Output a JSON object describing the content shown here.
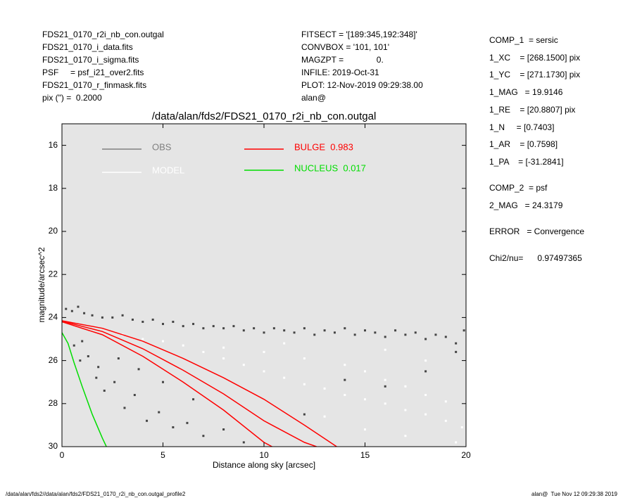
{
  "header": {
    "left": [
      "FDS21_0170_r2i_nb_con.outgal",
      "FDS21_0170_i_data.fits",
      "FDS21_0170_i_sigma.fits",
      "PSF     = psf_i21_over2.fits",
      "FDS21_0170_r_finmask.fits",
      "pix (\") =  0.2000"
    ],
    "middle": [
      "FITSECT = '[189:345,192:348]'",
      "CONVBOX = '101, 101'",
      "MAGZPT =              0.",
      "INFILE: 2019-Oct-31",
      "PLOT: 12-Nov-2019 09:29:38.00",
      "alan@"
    ],
    "right": [
      "COMP_1  = sersic",
      "1_XC    = [268.1500] pix",
      "1_YC    = [271.1730] pix",
      "1_MAG   = 19.9146",
      "1_RE    = [20.8807] pix",
      "1_N     = [0.7403]",
      "1_AR    = [0.7598]",
      "1_PA    = [-31.2841]",
      "COMP_2  = psf",
      "2_MAG   = 24.3179",
      "ERROR   = Convergence",
      "Chi2/nu=      0.97497365"
    ]
  },
  "footer": {
    "left": "/data/alan/fds2//data/alan/fds2/FDS21_0170_r2i_nb_con.outgal_profile2",
    "right": "alan@  Tue Nov 12 09:29:38 2019"
  },
  "chart_data": {
    "type": "scatter",
    "title": "/data/alan/fds2/FDS21_0170_r2i_nb_con.outgal",
    "xlabel": "Distance along sky [arcsec]",
    "ylabel": "magnitude/arcsec^2",
    "xlim": [
      0,
      20
    ],
    "ylim": [
      30,
      15
    ],
    "xticks": [
      0,
      5,
      10,
      15,
      20
    ],
    "yticks": [
      16,
      18,
      20,
      22,
      24,
      26,
      28,
      30
    ],
    "background": "#e5e5e5",
    "series": [
      {
        "name": "OBS",
        "color": "#444444",
        "legend_color": "#808080",
        "x": [
          0.2,
          0.5,
          0.8,
          1.1,
          1.5,
          2.0,
          2.5,
          3.0,
          3.5,
          4.0,
          4.5,
          5.0,
          5.5,
          6.0,
          6.5,
          7.0,
          7.5,
          8.0,
          8.5,
          9.0,
          9.5,
          10.0,
          10.5,
          11.0,
          11.5,
          12.0,
          12.5,
          13.0,
          13.5,
          14.0,
          14.5,
          15.0,
          15.5,
          16.0,
          16.5,
          17.0,
          17.5,
          18.0,
          18.5,
          19.0,
          19.5,
          19.9,
          0.6,
          0.9,
          1.3,
          1.7,
          2.1,
          2.6,
          3.1,
          3.6,
          4.2,
          4.8,
          5.5,
          6.2,
          7.0,
          8.0,
          9.0,
          1.0,
          1.8,
          2.8,
          3.8,
          5.0,
          6.5,
          12.0,
          14.0,
          16.0,
          18.0,
          19.5
        ],
        "values": [
          23.6,
          23.7,
          23.5,
          23.8,
          23.9,
          24.0,
          24.0,
          23.9,
          24.1,
          24.2,
          24.1,
          24.3,
          24.2,
          24.4,
          24.3,
          24.5,
          24.4,
          24.5,
          24.4,
          24.6,
          24.5,
          24.7,
          24.5,
          24.6,
          24.7,
          24.5,
          24.8,
          24.6,
          24.7,
          24.5,
          24.8,
          24.6,
          24.7,
          24.9,
          24.6,
          24.8,
          24.7,
          25.0,
          24.8,
          24.9,
          25.2,
          24.6,
          25.3,
          26.0,
          25.8,
          26.8,
          27.4,
          27.0,
          28.2,
          27.6,
          28.8,
          28.4,
          29.1,
          28.9,
          29.5,
          29.2,
          29.8,
          25.1,
          26.3,
          25.9,
          26.4,
          27.0,
          27.8,
          28.5,
          26.9,
          27.2,
          26.5,
          25.6
        ]
      },
      {
        "name": "MODEL",
        "color": "#ffffff",
        "legend_color": "#ffffff",
        "x": [
          3,
          4,
          5,
          6,
          7,
          8,
          9,
          10,
          11,
          12,
          13,
          14,
          15,
          16,
          17,
          18,
          19,
          19.8,
          8,
          10,
          12,
          14,
          15,
          16,
          17,
          18,
          19,
          13,
          15,
          17,
          19.5,
          11,
          16,
          18
        ],
        "values": [
          24.8,
          25.0,
          25.1,
          25.3,
          25.6,
          25.9,
          26.2,
          26.5,
          26.8,
          27.1,
          27.3,
          27.6,
          27.8,
          28.0,
          28.3,
          28.5,
          28.8,
          29.1,
          25.4,
          25.6,
          25.9,
          26.2,
          26.5,
          26.9,
          27.2,
          27.6,
          27.9,
          28.6,
          29.2,
          29.5,
          29.8,
          25.2,
          25.5,
          26.0
        ]
      },
      {
        "name": "BULGE  0.983",
        "color": "#ff0000",
        "lines": [
          {
            "x": [
              0,
              2,
              4,
              6,
              8,
              10,
              12,
              13.6
            ],
            "values": [
              24.15,
              24.5,
              25.1,
              25.9,
              26.8,
              27.8,
              29.0,
              30
            ]
          },
          {
            "x": [
              0,
              2,
              4,
              6,
              8,
              10,
              12,
              12.6
            ],
            "values": [
              24.17,
              24.65,
              25.45,
              26.45,
              27.55,
              28.8,
              29.8,
              30
            ]
          },
          {
            "x": [
              0,
              2,
              4,
              6,
              8,
              10,
              10.4
            ],
            "values": [
              24.2,
              24.8,
              25.8,
              27.0,
              28.3,
              29.8,
              30
            ]
          }
        ]
      },
      {
        "name": "NUCLEUS  0.017",
        "color": "#00dd00",
        "x": [
          0,
          0.3,
          0.6,
          1.0,
          1.5,
          2.0,
          2.2
        ],
        "values": [
          24.7,
          25.2,
          26.1,
          27.2,
          28.5,
          29.6,
          30
        ]
      }
    ]
  }
}
